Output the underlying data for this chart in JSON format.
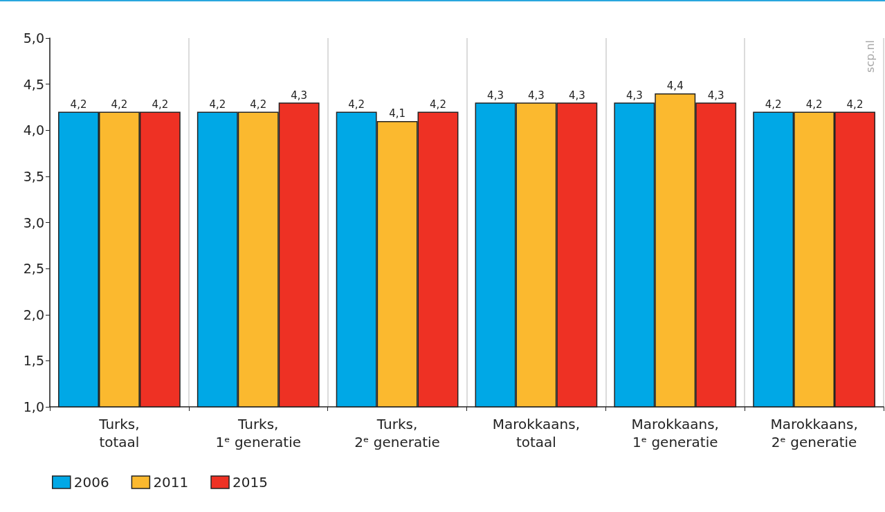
{
  "chart_data": {
    "type": "bar",
    "categories": [
      "Turks,\ntotaal",
      "Turks,\n1ᵉ generatie",
      "Turks,\n2ᵉ generatie",
      "Marokkaans,\ntotaal",
      "Marokkaans,\n1ᵉ generatie",
      "Marokkaans,\n2ᵉ generatie"
    ],
    "series": [
      {
        "name": "2006",
        "color": "#00a8e6",
        "values": [
          4.2,
          4.2,
          4.2,
          4.3,
          4.3,
          4.2
        ],
        "value_labels": [
          "4,2",
          "4,2",
          "4,2",
          "4,3",
          "4,3",
          "4,2"
        ]
      },
      {
        "name": "2011",
        "color": "#fbb92f",
        "values": [
          4.2,
          4.2,
          4.1,
          4.3,
          4.4,
          4.2
        ],
        "value_labels": [
          "4,2",
          "4,2",
          "4,1",
          "4,3",
          "4,4",
          "4,2"
        ]
      },
      {
        "name": "2015",
        "color": "#ee3124",
        "values": [
          4.2,
          4.3,
          4.2,
          4.3,
          4.3,
          4.2
        ],
        "value_labels": [
          "4,2",
          "4,3",
          "4,2",
          "4,3",
          "4,3",
          "4,2"
        ]
      }
    ],
    "ylim": [
      1,
      5
    ],
    "yticks": [
      {
        "value": 1,
        "label": "1,0"
      },
      {
        "value": 1.5,
        "label": "1,5"
      },
      {
        "value": 2,
        "label": "2,0"
      },
      {
        "value": 2.5,
        "label": "2,5"
      },
      {
        "value": 3,
        "label": "3,0"
      },
      {
        "value": 3.5,
        "label": "3,5"
      },
      {
        "value": 4,
        "label": "4,0"
      },
      {
        "value": 4.5,
        "label": "4,5"
      },
      {
        "value": 5,
        "label": "5,0"
      }
    ],
    "grid": "x",
    "legend": "bottom left",
    "annotations": [
      "scp.nl"
    ]
  }
}
